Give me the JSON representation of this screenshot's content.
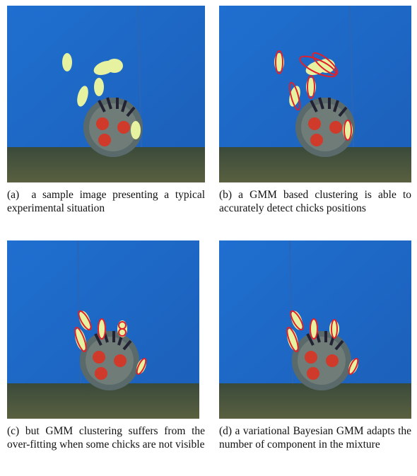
{
  "figures": [
    {
      "label": "(a)",
      "caption": "a sample image presenting a typical experimental situation"
    },
    {
      "label": "(b)",
      "caption": "a GMM based clustering is able to accurately detect chicks positions"
    },
    {
      "label": "(c)",
      "caption": "but GMM clustering suffers from the over-fitting when some chicks are not visible"
    },
    {
      "label": "(d)",
      "caption": "a variational Bayesian GMM adapts the number of component in the mixture"
    }
  ]
}
